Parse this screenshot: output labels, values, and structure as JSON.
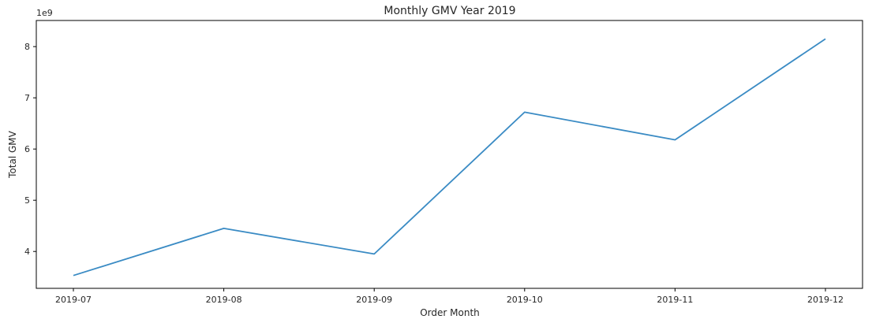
{
  "chart_data": {
    "type": "line",
    "title": "Monthly GMV Year 2019",
    "xlabel": "Order Month",
    "ylabel": "Total GMV",
    "y_scale_label": "1e9",
    "categories": [
      "2019-07",
      "2019-08",
      "2019-09",
      "2019-10",
      "2019-11",
      "2019-12"
    ],
    "series": [
      {
        "values": [
          3.53,
          4.45,
          3.95,
          6.72,
          6.18,
          8.15
        ]
      }
    ],
    "y_ticks": [
      4,
      5,
      6,
      7,
      8
    ],
    "y_tick_labels": [
      "4",
      "5",
      "6",
      "7",
      "8"
    ],
    "ylim": [
      3.28,
      8.51
    ],
    "grid": false,
    "line_color": "#3a8bc4"
  }
}
